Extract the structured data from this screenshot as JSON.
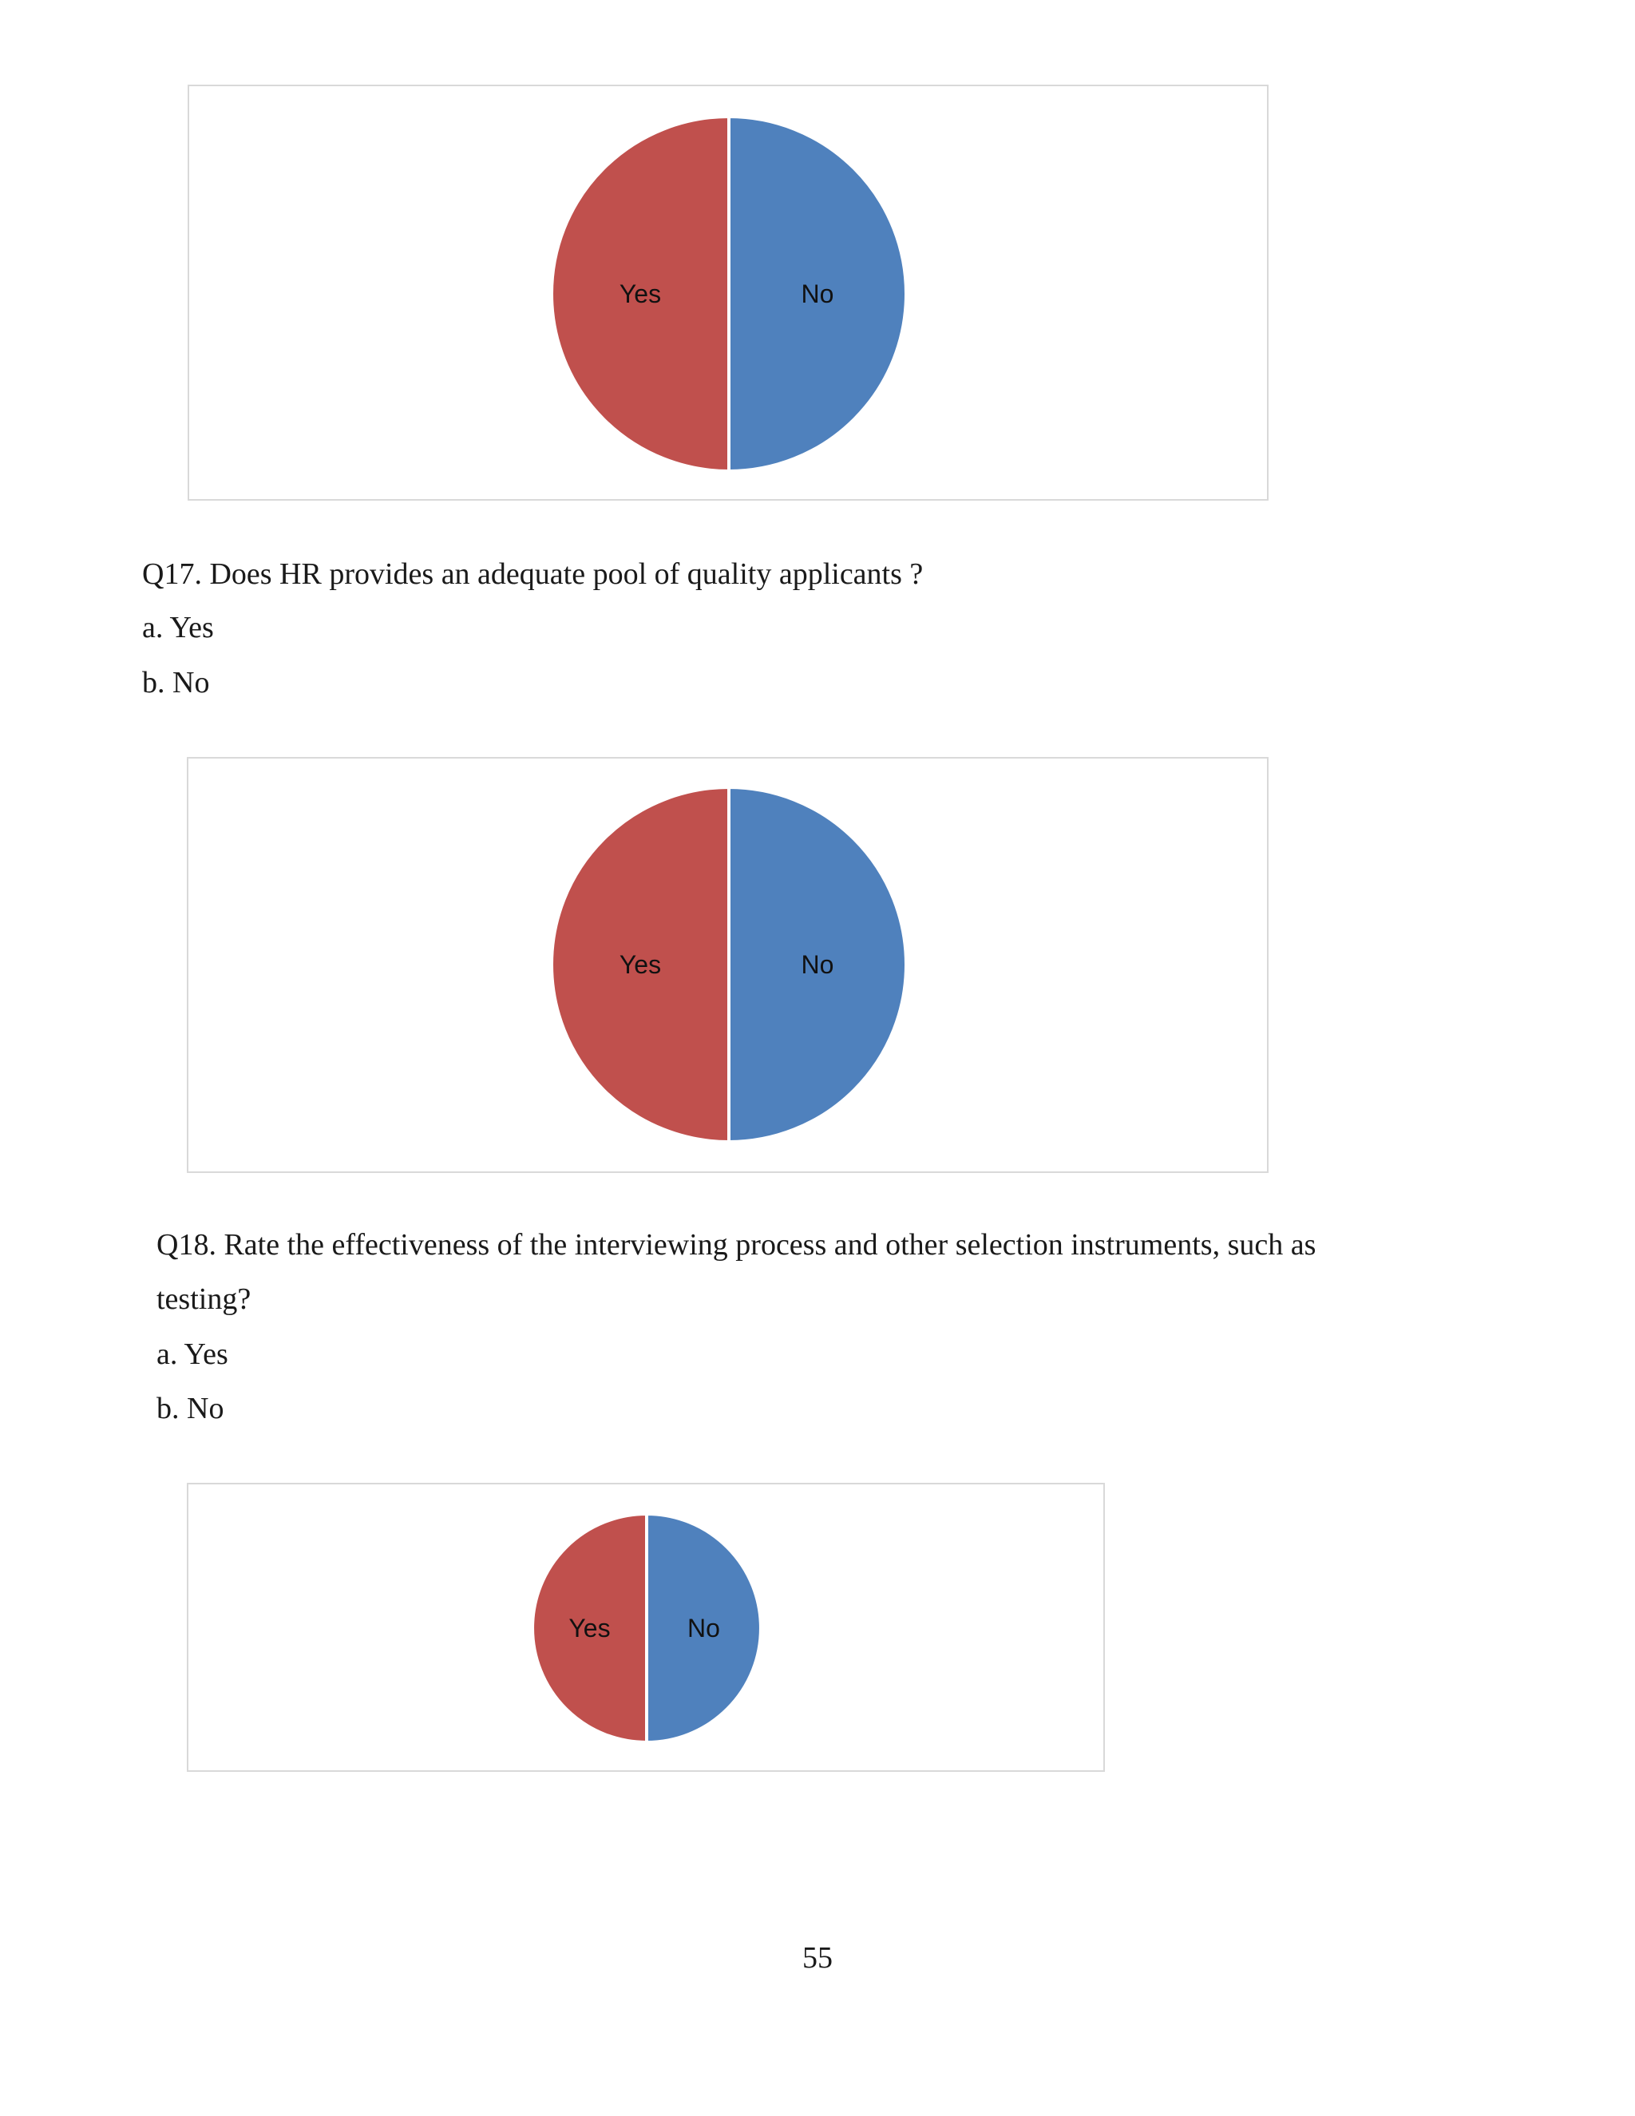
{
  "colors": {
    "yes": "#c0504d",
    "no": "#4f81bd",
    "divider": "#ffffff",
    "frame": "#d9d9d9"
  },
  "chart_data": [
    {
      "type": "pie",
      "labels": [
        "Yes",
        "No"
      ],
      "values": [
        50,
        50
      ],
      "title": "",
      "legend": "none"
    },
    {
      "type": "pie",
      "labels": [
        "Yes",
        "No"
      ],
      "values": [
        50,
        50
      ],
      "title": "",
      "legend": "none"
    },
    {
      "type": "pie",
      "labels": [
        "Yes",
        "No"
      ],
      "values": [
        50,
        50
      ],
      "title": "",
      "legend": "none"
    }
  ],
  "q17": {
    "question": "Q17. Does HR provides an adequate pool of quality applicants ?",
    "option_a": "a. Yes",
    "option_b": "b. No"
  },
  "q18": {
    "question_line1": "Q18. Rate the effectiveness of the interviewing process and other selection instruments, such as",
    "question_line2": "testing?",
    "option_a": "a. Yes",
    "option_b": "b. No"
  },
  "page_number": "55"
}
